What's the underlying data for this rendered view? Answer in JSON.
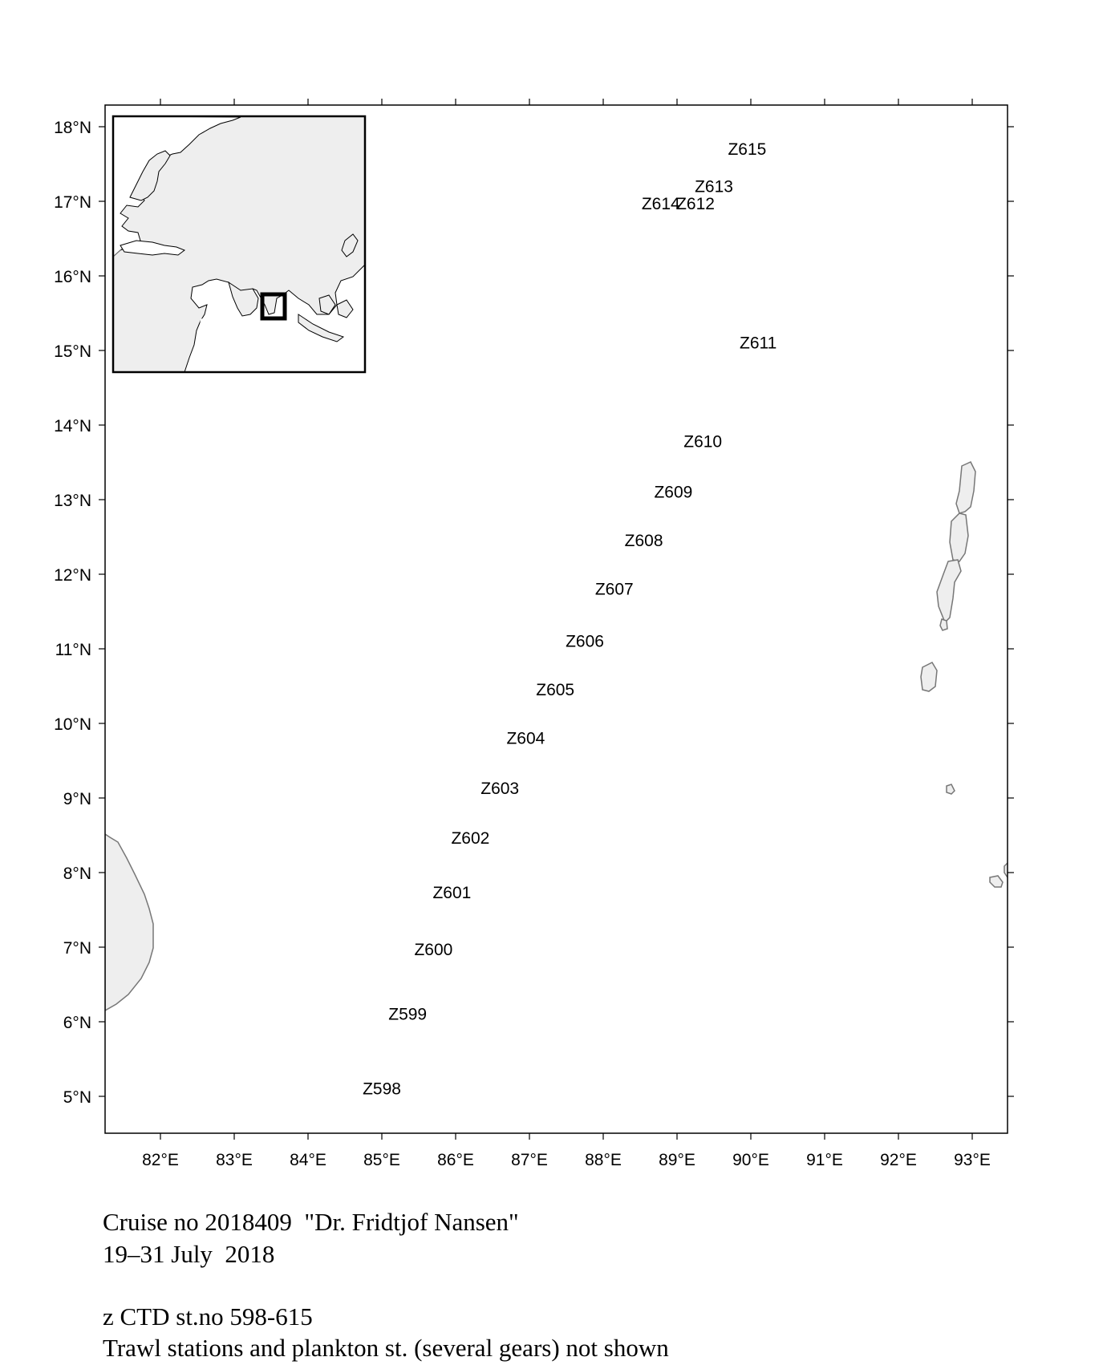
{
  "map": {
    "lon_ticks": [
      "82°E",
      "83°E",
      "84°E",
      "85°E",
      "86°E",
      "87°E",
      "88°E",
      "89°E",
      "90°E",
      "91°E",
      "92°E",
      "93°E"
    ],
    "lat_ticks": [
      "18°N",
      "17°N",
      "16°N",
      "15°N",
      "14°N",
      "13°N",
      "12°N",
      "11°N",
      "10°N",
      "9°N",
      "8°N",
      "7°N",
      "6°N",
      "5°N"
    ],
    "land_color": "#eeeeee",
    "stations": [
      {
        "label": "Z598",
        "lon": 85.0,
        "lat": 5.1
      },
      {
        "label": "Z599",
        "lon": 85.35,
        "lat": 6.1
      },
      {
        "label": "Z600",
        "lon": 85.7,
        "lat": 6.97
      },
      {
        "label": "Z601",
        "lon": 85.95,
        "lat": 7.73
      },
      {
        "label": "Z602",
        "lon": 86.2,
        "lat": 8.46
      },
      {
        "label": "Z603",
        "lon": 86.6,
        "lat": 9.13
      },
      {
        "label": "Z604",
        "lon": 86.95,
        "lat": 9.8
      },
      {
        "label": "Z605",
        "lon": 87.35,
        "lat": 10.45
      },
      {
        "label": "Z606",
        "lon": 87.75,
        "lat": 11.1
      },
      {
        "label": "Z607",
        "lon": 88.15,
        "lat": 11.8
      },
      {
        "label": "Z608",
        "lon": 88.55,
        "lat": 12.45
      },
      {
        "label": "Z609",
        "lon": 88.95,
        "lat": 13.1
      },
      {
        "label": "Z610",
        "lon": 89.35,
        "lat": 13.78
      },
      {
        "label": "Z611",
        "lon": 90.1,
        "lat": 15.1
      },
      {
        "label": "Z612",
        "lon": 89.25,
        "lat": 16.97
      },
      {
        "label": "Z613",
        "lon": 89.5,
        "lat": 17.2
      },
      {
        "label": "Z614",
        "lon": 88.78,
        "lat": 16.97
      },
      {
        "label": "Z615",
        "lon": 89.95,
        "lat": 17.7
      }
    ]
  },
  "caption": {
    "line1": "Cruise no 2018409  \"Dr. Fridtjof Nansen\"",
    "line2": "19–31 July  2018",
    "line3": "z CTD st.no 598-615",
    "line4": "Trawl stations and plankton st. (several gears) not shown"
  }
}
